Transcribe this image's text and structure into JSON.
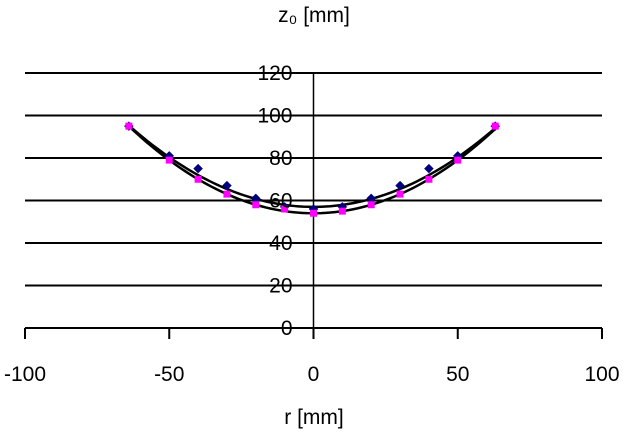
{
  "chart_data": {
    "type": "scatter",
    "title": "z₀ [mm]",
    "xlabel": "r [mm]",
    "ylabel": "",
    "xlim": [
      -100,
      100
    ],
    "ylim": [
      0,
      120
    ],
    "x_ticks": [
      -100,
      -50,
      0,
      50,
      100
    ],
    "y_ticks": [
      0,
      20,
      40,
      60,
      80,
      100,
      120
    ],
    "grid": "horizontal",
    "legend": "none",
    "series": [
      {
        "marker": "diamond",
        "color": "#00007f",
        "points": [
          {
            "x": -64,
            "y": 95
          },
          {
            "x": -50,
            "y": 81
          },
          {
            "x": -40,
            "y": 75
          },
          {
            "x": -30,
            "y": 67
          },
          {
            "x": -20,
            "y": 61
          },
          {
            "x": -10,
            "y": 57
          },
          {
            "x": 0,
            "y": 56
          },
          {
            "x": 10,
            "y": 57
          },
          {
            "x": 20,
            "y": 61
          },
          {
            "x": 30,
            "y": 67
          },
          {
            "x": 40,
            "y": 75
          },
          {
            "x": 50,
            "y": 81
          },
          {
            "x": 63,
            "y": 95
          }
        ]
      },
      {
        "marker": "square",
        "color": "#ff00ff",
        "points": [
          {
            "x": -64,
            "y": 95
          },
          {
            "x": -50,
            "y": 79
          },
          {
            "x": -40,
            "y": 70
          },
          {
            "x": -30,
            "y": 63
          },
          {
            "x": -20,
            "y": 58
          },
          {
            "x": -10,
            "y": 56
          },
          {
            "x": 0,
            "y": 54
          },
          {
            "x": 10,
            "y": 55
          },
          {
            "x": 20,
            "y": 58
          },
          {
            "x": 30,
            "y": 63
          },
          {
            "x": 40,
            "y": 70
          },
          {
            "x": 50,
            "y": 79
          },
          {
            "x": 63,
            "y": 95
          }
        ]
      }
    ],
    "fit_curves": [
      {
        "type": "quadratic",
        "vertex_y": 57,
        "curvature": 0.00935,
        "x_range": [
          -64,
          63
        ],
        "color": "#000000"
      },
      {
        "type": "quadratic",
        "vertex_y": 54,
        "curvature": 0.01,
        "x_range": [
          -64,
          63
        ],
        "color": "#000000"
      }
    ]
  }
}
